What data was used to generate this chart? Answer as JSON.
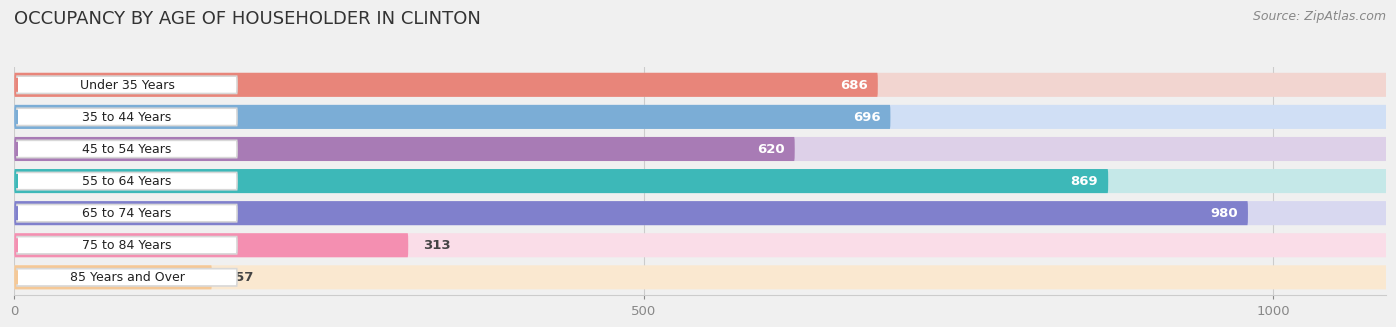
{
  "title": "OCCUPANCY BY AGE OF HOUSEHOLDER IN CLINTON",
  "source": "Source: ZipAtlas.com",
  "categories": [
    "Under 35 Years",
    "35 to 44 Years",
    "45 to 54 Years",
    "55 to 64 Years",
    "65 to 74 Years",
    "75 to 84 Years",
    "85 Years and Over"
  ],
  "values": [
    686,
    696,
    620,
    869,
    980,
    313,
    157
  ],
  "bar_colors": [
    "#E8857A",
    "#7BADD6",
    "#A87BB5",
    "#3DB8B8",
    "#8080CC",
    "#F48FB1",
    "#F5C896"
  ],
  "bar_bg_colors": [
    "#F2D5D0",
    "#D0DFF5",
    "#DDD0E8",
    "#C5E8E8",
    "#D8D8F0",
    "#FADDE8",
    "#FAE8D0"
  ],
  "xlim_max": 1090,
  "xticks": [
    0,
    500,
    1000
  ],
  "bg_color": "#f0f0f0",
  "title_fontsize": 13,
  "source_fontsize": 9
}
